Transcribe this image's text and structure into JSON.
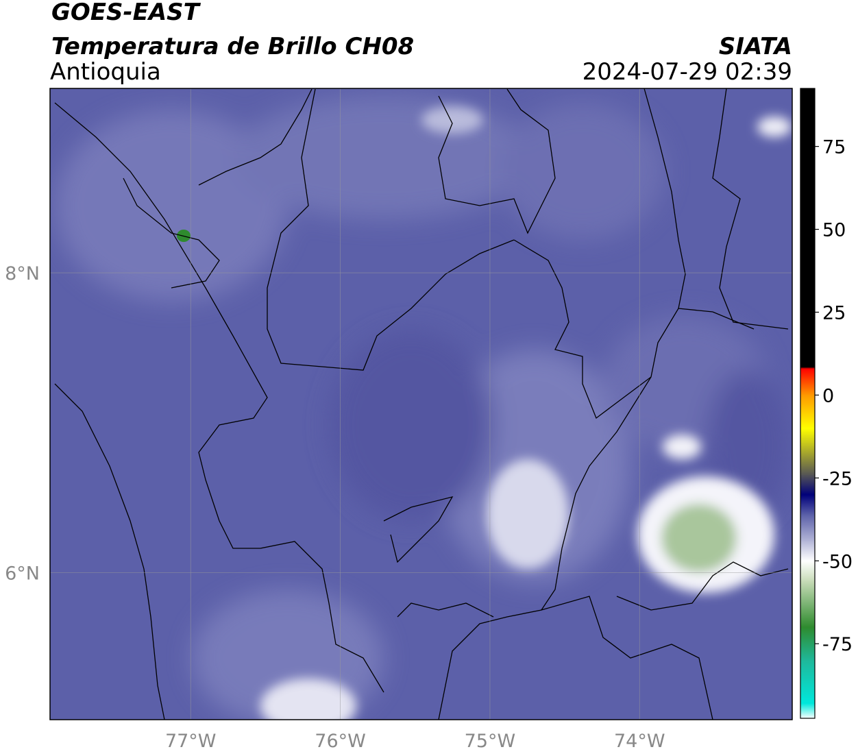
{
  "header": {
    "satellite": "GOES-EAST",
    "product": "Temperatura de Brillo CH08",
    "region": "Antioquia",
    "source": "SIATA",
    "datetime": "2024-07-29 02:39"
  },
  "map": {
    "xlim": [
      -77.94,
      -72.98
    ],
    "ylim": [
      5.02,
      9.23
    ],
    "xticks": [
      {
        "value": -77,
        "label": "77°W"
      },
      {
        "value": -76,
        "label": "76°W"
      },
      {
        "value": -75,
        "label": "75°W"
      },
      {
        "value": -74,
        "label": "74°W"
      }
    ],
    "yticks": [
      {
        "value": 6,
        "label": "6°N"
      },
      {
        "value": 8,
        "label": "8°N"
      }
    ],
    "grid": true
  },
  "colorbar": {
    "lim": [
      -97.5,
      92.5
    ],
    "ticks": [
      75,
      50,
      25,
      0,
      -25,
      -50,
      -75
    ],
    "stops": [
      {
        "value": -97.5,
        "color": "#ffffff"
      },
      {
        "value": -93,
        "color": "#00e8dc"
      },
      {
        "value": -80,
        "color": "#1fb89a"
      },
      {
        "value": -70,
        "color": "#2e8b2e"
      },
      {
        "value": -56,
        "color": "#c8dcb8"
      },
      {
        "value": -50,
        "color": "#ffffff"
      },
      {
        "value": -44,
        "color": "#b4b6d8"
      },
      {
        "value": -36,
        "color": "#5a5fa8"
      },
      {
        "value": -30,
        "color": "#00007a"
      },
      {
        "value": -24,
        "color": "#555555"
      },
      {
        "value": -10,
        "color": "#ffff00"
      },
      {
        "value": 0,
        "color": "#ff9900"
      },
      {
        "value": 8,
        "color": "#ff0000"
      },
      {
        "value": 8.5,
        "color": "#000000"
      },
      {
        "value": 92.5,
        "color": "#000000"
      }
    ]
  }
}
